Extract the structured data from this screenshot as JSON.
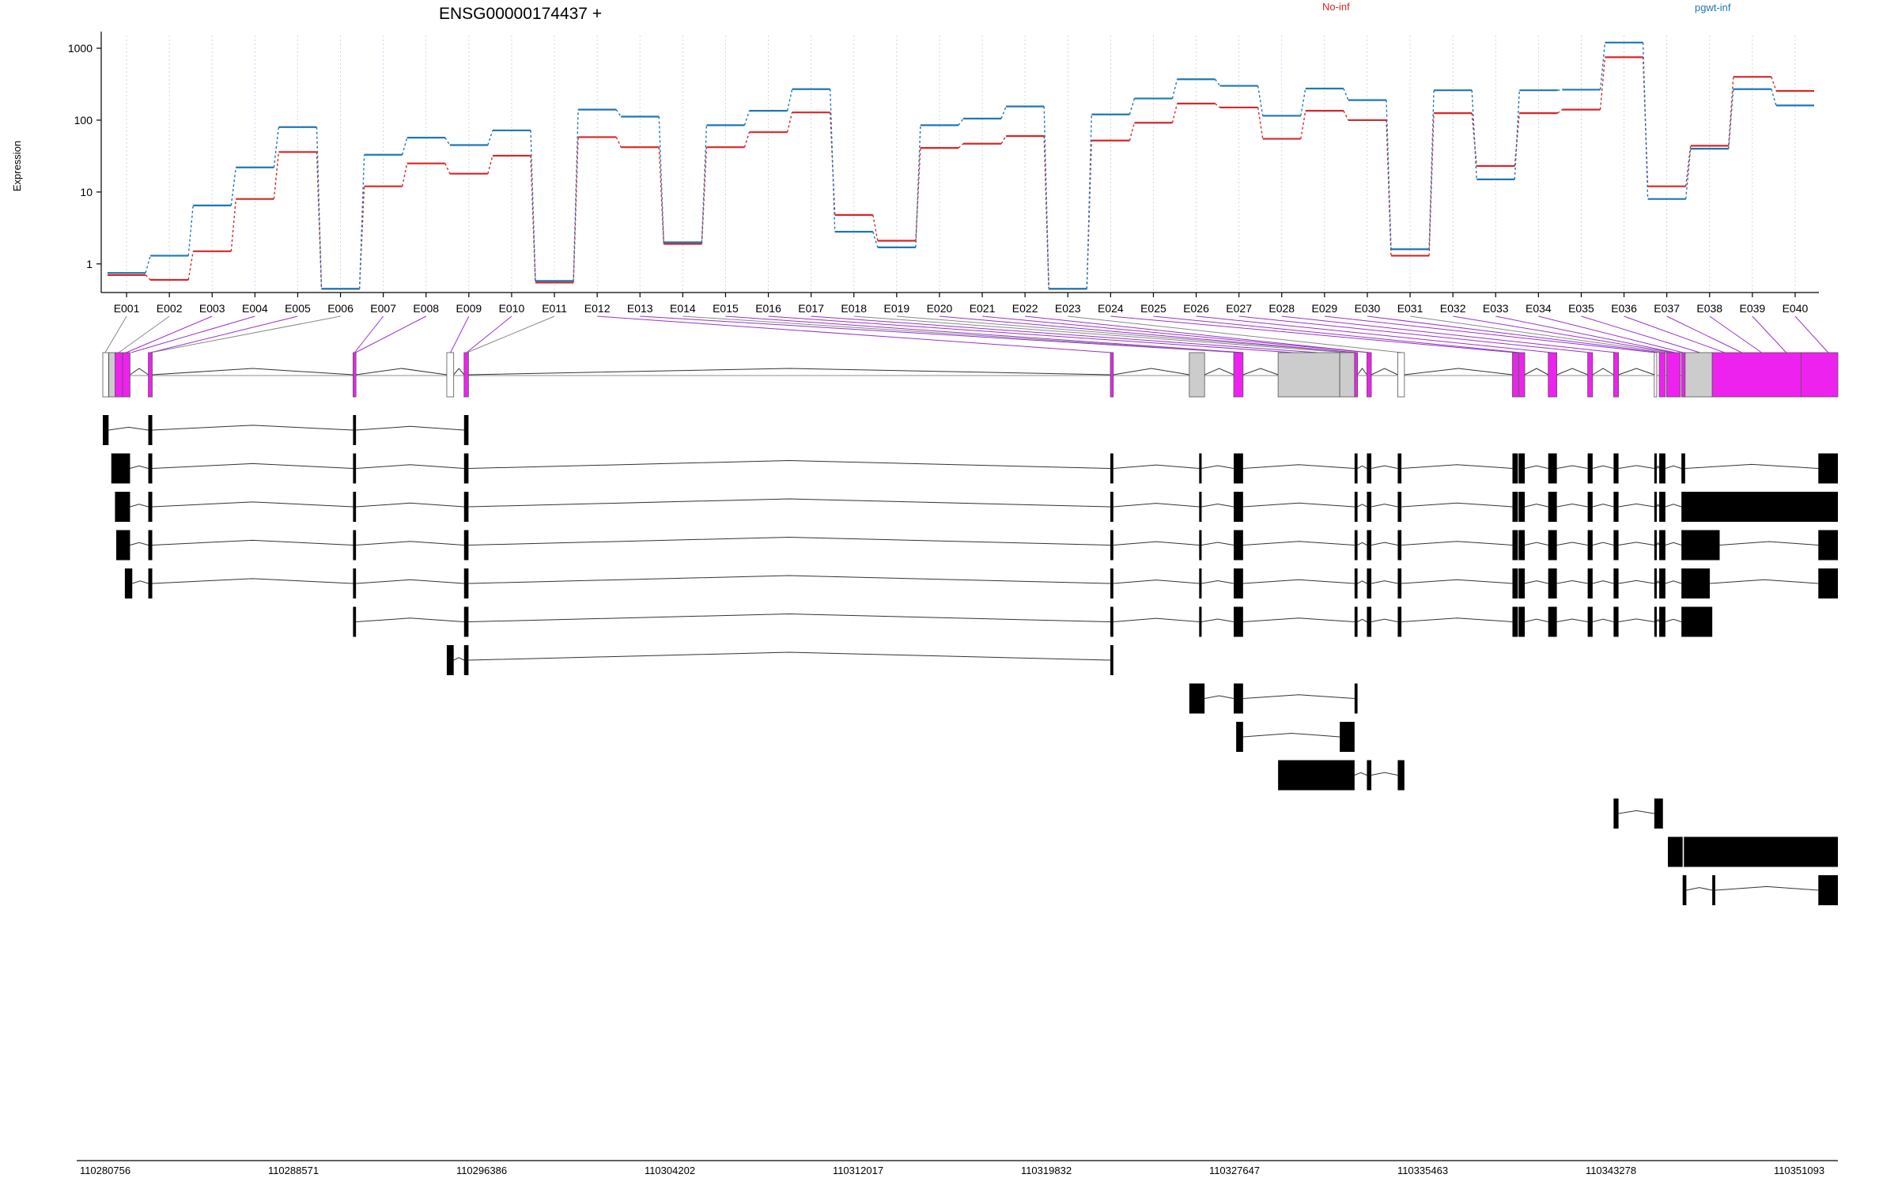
{
  "chart_data": {
    "type": "line",
    "title": "ENSG00000174437 +",
    "ylabel": "Expression",
    "yscale": "log",
    "ylim": [
      0.4,
      1500
    ],
    "yticks": [
      {
        "value": 1,
        "label": "1"
      },
      {
        "value": 10,
        "label": "10"
      },
      {
        "value": 100,
        "label": "100"
      },
      {
        "value": 1000,
        "label": "1000"
      }
    ],
    "categories": [
      "E001",
      "E002",
      "E003",
      "E004",
      "E005",
      "E006",
      "E007",
      "E008",
      "E009",
      "E010",
      "E011",
      "E012",
      "E013",
      "E014",
      "E015",
      "E016",
      "E017",
      "E018",
      "E019",
      "E020",
      "E021",
      "E022",
      "E023",
      "E024",
      "E025",
      "E026",
      "E027",
      "E028",
      "E029",
      "E030",
      "E031",
      "E032",
      "E033",
      "E034",
      "E035",
      "E036",
      "E037",
      "E038",
      "E039",
      "E040"
    ],
    "grid": "vertical dotted",
    "legend_position": "top-right",
    "series": [
      {
        "name": "No-inf",
        "color": "#d62728",
        "values": [
          0.7,
          0.6,
          1.5,
          8,
          36,
          0.45,
          12,
          25,
          18,
          32,
          0.55,
          58,
          42,
          1.9,
          42,
          68,
          128,
          4.8,
          2.1,
          41,
          47,
          60,
          0.45,
          52,
          92,
          170,
          150,
          55,
          135,
          100,
          1.3,
          125,
          23,
          125,
          140,
          750,
          12,
          44,
          400,
          255
        ]
      },
      {
        "name": "pgwt-inf",
        "color": "#1f77b4",
        "values": [
          0.75,
          1.3,
          6.5,
          22,
          80,
          0.45,
          33,
          57,
          45,
          72,
          0.58,
          140,
          112,
          2.0,
          85,
          135,
          270,
          2.8,
          1.7,
          85,
          105,
          155,
          0.45,
          120,
          200,
          370,
          300,
          115,
          275,
          190,
          1.6,
          260,
          15,
          260,
          265,
          1200,
          8,
          40,
          270,
          160
        ]
      }
    ]
  },
  "gene_model": {
    "x_range": [
      110280756,
      110351093
    ],
    "coord_ticks": [
      "110280756",
      "110288571",
      "110296386",
      "110304202",
      "110312017",
      "110319832",
      "110327647",
      "110335463",
      "110343278",
      "110351093"
    ],
    "colors": {
      "expressed_exon": "#ee22ee",
      "other_exon": "#cccccc",
      "transcript_exon": "#000000",
      "mapping_line": "#9932cc"
    }
  }
}
